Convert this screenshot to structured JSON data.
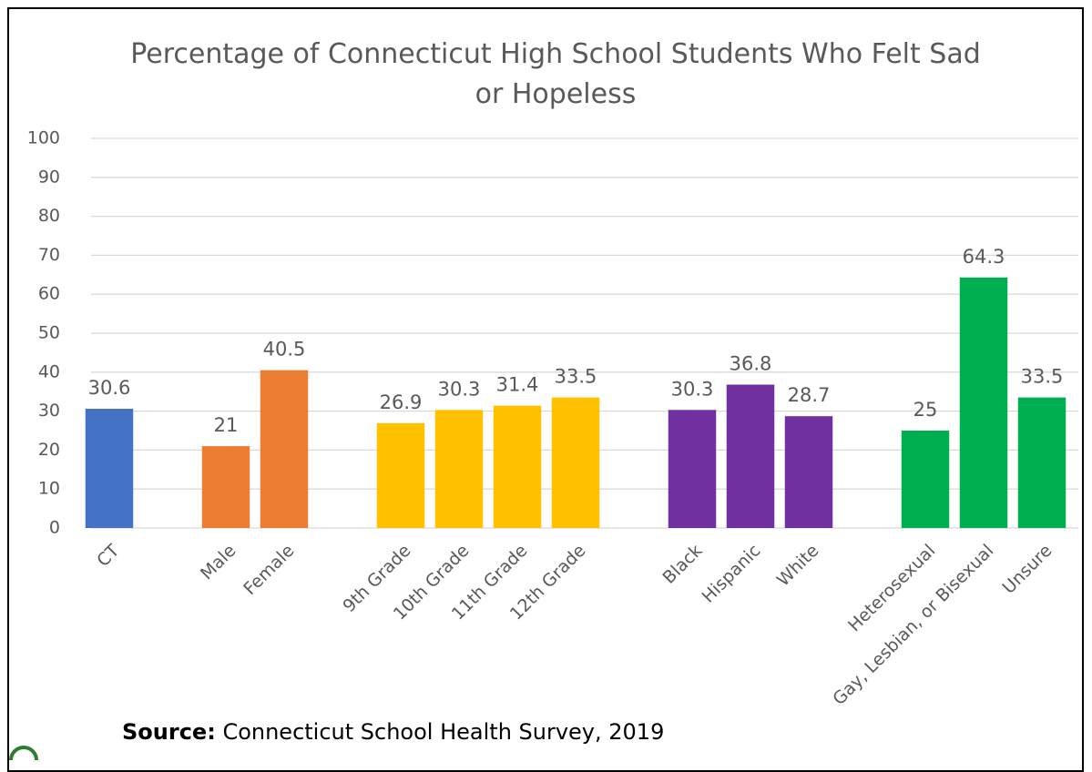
{
  "chart_data": {
    "type": "bar",
    "title": "Percentage of Connecticut High School Students Who Felt Sad or Hopeless",
    "categories": [
      "CT",
      null,
      "Male",
      "Female",
      null,
      "9th Grade",
      "10th Grade",
      "11th Grade",
      "12th Grade",
      null,
      "Black",
      "Hispanic",
      "White",
      null,
      "Heterosexual",
      "Gay, Lesbian, or Bisexual",
      "Unsure"
    ],
    "values": [
      30.6,
      null,
      21,
      40.5,
      null,
      26.9,
      30.3,
      31.4,
      33.5,
      null,
      30.3,
      36.8,
      28.7,
      null,
      25,
      64.3,
      33.5
    ],
    "colors": [
      "#4472c4",
      null,
      "#ed7d31",
      "#ed7d31",
      null,
      "#ffc000",
      "#ffc000",
      "#ffc000",
      "#ffc000",
      null,
      "#7030a0",
      "#7030a0",
      "#7030a0",
      null,
      "#00b050",
      "#00b050",
      "#00b050"
    ],
    "ylim": [
      0,
      100
    ],
    "yticks": [
      0,
      10,
      20,
      30,
      40,
      50,
      60,
      70,
      80,
      90,
      100
    ],
    "grid": true,
    "source_label": "Source:",
    "source_text": "Connecticut School Health Survey, 2019"
  }
}
